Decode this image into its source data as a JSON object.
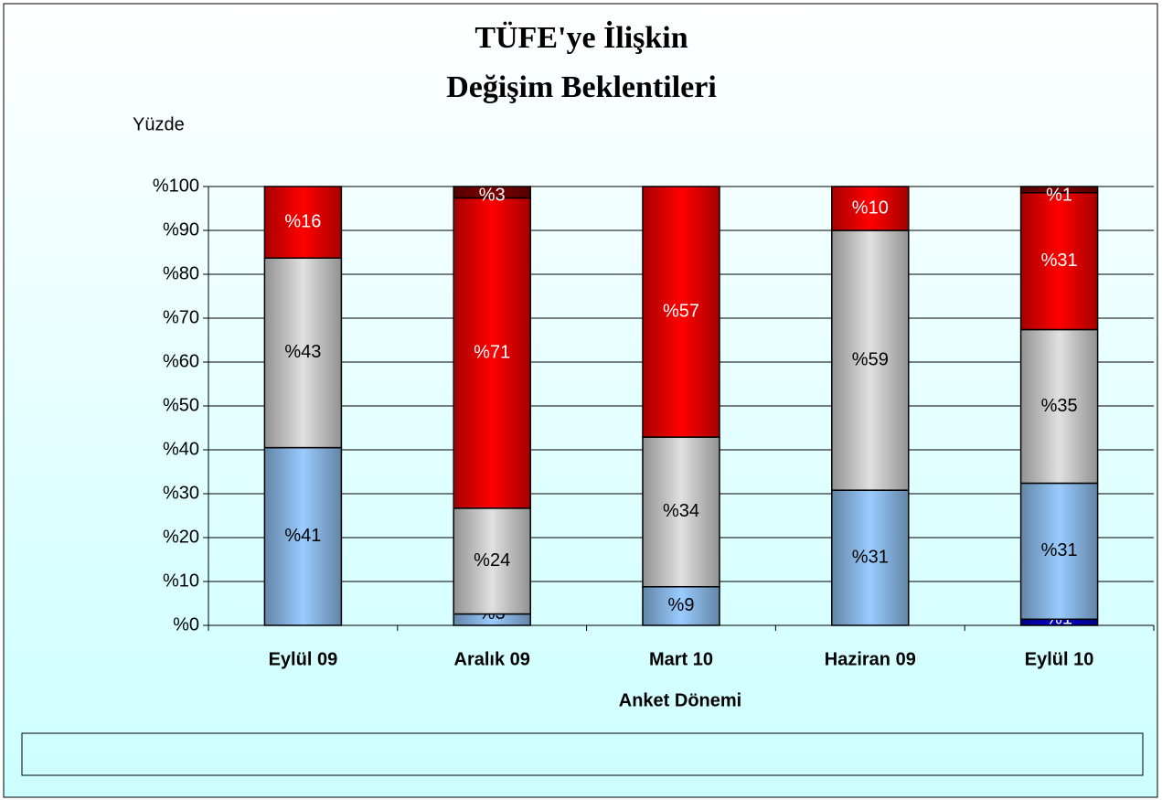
{
  "chart_data": {
    "type": "stacked_bar",
    "title": [
      "TÜFE'ye İlişkin",
      "Değişim Beklentileri"
    ],
    "y_axis_label": "Yüzde",
    "x_axis_label": "Anket Dönemi",
    "categories": [
      "Eylül 09",
      "Aralık 09",
      "Mart 10",
      "Haziran 09",
      "Eylül 10"
    ],
    "series": [
      {
        "color": "#0000cc",
        "label_color": "#ffffff",
        "values": [
          null,
          null,
          null,
          null,
          1.4
        ],
        "value_labels": [
          null,
          null,
          null,
          null,
          "%1"
        ]
      },
      {
        "color": "#99ccff",
        "label_color": "#000000",
        "values": [
          40.5,
          2.6,
          8.8,
          30.8,
          31.0
        ],
        "value_labels": [
          "%41",
          "%3",
          "%9",
          "%31",
          "%31"
        ]
      },
      {
        "color": "#e0e0e0",
        "label_color": "#000000",
        "values": [
          43.2,
          24.1,
          34.1,
          59.2,
          35.0
        ],
        "value_labels": [
          "%43",
          "%24",
          "%34",
          "%59",
          "%35"
        ]
      },
      {
        "color": "#ff0000",
        "label_color": "#ffffff",
        "values": [
          16.3,
          70.7,
          57.1,
          10.0,
          31.2
        ],
        "value_labels": [
          "%16",
          "%71",
          "%57",
          "%10",
          "%31"
        ]
      },
      {
        "color": "#800000",
        "label_color": "#ffffff",
        "values": [
          null,
          2.6,
          null,
          null,
          1.4
        ],
        "value_labels": [
          null,
          "%3",
          null,
          null,
          "%1"
        ]
      }
    ],
    "ylim": [
      0,
      100
    ],
    "yticks": [
      {
        "value": 0,
        "label": "%0"
      },
      {
        "value": 10,
        "label": "%10"
      },
      {
        "value": 20,
        "label": "%20"
      },
      {
        "value": 30,
        "label": "%30"
      },
      {
        "value": 40,
        "label": "%40"
      },
      {
        "value": 50,
        "label": "%50"
      },
      {
        "value": 60,
        "label": "%60"
      },
      {
        "value": 70,
        "label": "%70"
      },
      {
        "value": 80,
        "label": "%80"
      },
      {
        "value": 90,
        "label": "%90"
      },
      {
        "value": 100,
        "label": "%100"
      }
    ],
    "grid": true
  }
}
